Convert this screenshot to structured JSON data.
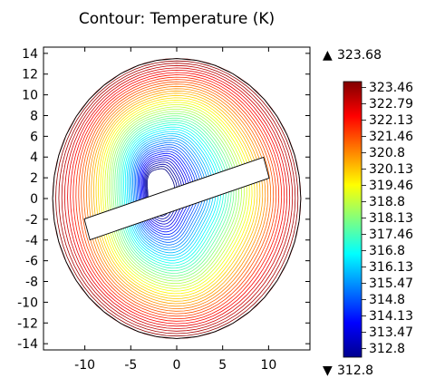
{
  "chart_data": {
    "type": "contour",
    "title": "Contour: Temperature (K)",
    "x_ticks": [
      -10,
      -5,
      0,
      5,
      10
    ],
    "y_ticks": [
      14,
      12,
      10,
      8,
      6,
      4,
      2,
      0,
      -2,
      -4,
      -6,
      -8,
      -10,
      -12,
      -14
    ],
    "xlim": [
      -14.5,
      14.5
    ],
    "ylim": [
      -14.6,
      14.6
    ],
    "domain": {
      "shape": "disk",
      "radius": 13.5
    },
    "obstacle": {
      "shape": "rotated-rectangle",
      "center": [
        0,
        0
      ],
      "length": 20.4,
      "thickness": 2.1,
      "angle_deg": 17
    },
    "max_label": "323.68",
    "min_label": "312.8",
    "colorbar_labels": [
      "323.46",
      "322.79",
      "322.13",
      "321.46",
      "320.8",
      "320.13",
      "319.46",
      "318.8",
      "318.13",
      "317.46",
      "316.8",
      "316.13",
      "315.47",
      "314.8",
      "314.13",
      "313.47",
      "312.8"
    ],
    "colorbar_range": [
      312.8,
      323.46
    ],
    "colormap": "jet",
    "grid": false,
    "legend": "colorbar-right",
    "contour_levels": 50
  },
  "ui": {
    "max_marker": "▲",
    "min_marker": "▼"
  }
}
